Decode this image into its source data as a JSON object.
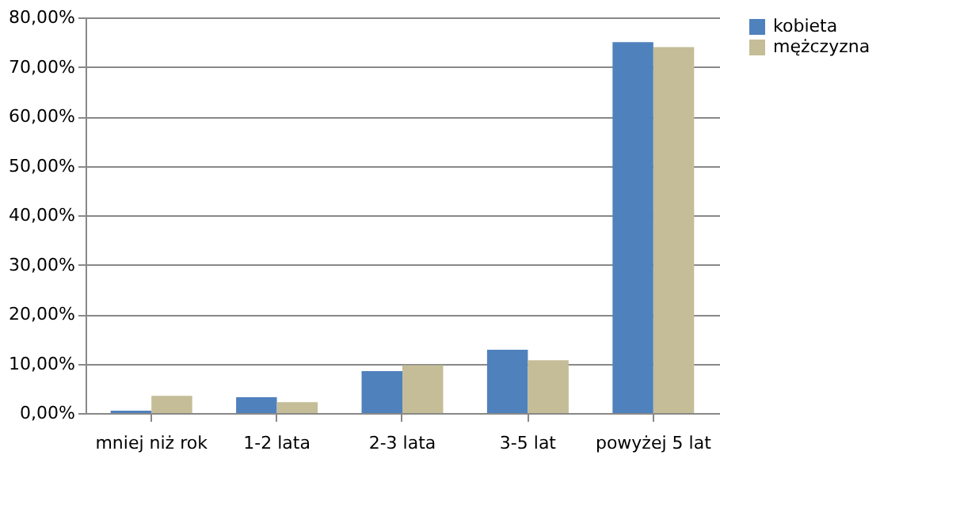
{
  "chart_data": {
    "type": "bar",
    "categories": [
      "mniej niż rok",
      "1-2 lata",
      "2-3 lata",
      "3-5 lat",
      "powyżej 5 lat"
    ],
    "series": [
      {
        "name": "kobieta",
        "color": "#4f81bd",
        "values": [
          0.5,
          3.2,
          8.5,
          12.8,
          75
        ]
      },
      {
        "name": "mężczyzna",
        "color": "#c4bd97",
        "values": [
          3.5,
          2.2,
          9.7,
          10.7,
          74
        ]
      }
    ],
    "ylim": [
      0,
      80
    ],
    "yticks": [
      {
        "value": 0,
        "label": "0,00%"
      },
      {
        "value": 10,
        "label": "10,00%"
      },
      {
        "value": 20,
        "label": "20,00%"
      },
      {
        "value": 30,
        "label": "30,00%"
      },
      {
        "value": 40,
        "label": "40,00%"
      },
      {
        "value": 50,
        "label": "50,00%"
      },
      {
        "value": 60,
        "label": "60,00%"
      },
      {
        "value": 70,
        "label": "70,00%"
      },
      {
        "value": 80,
        "label": "80,00%"
      }
    ],
    "grid": "y",
    "legend": "right"
  }
}
